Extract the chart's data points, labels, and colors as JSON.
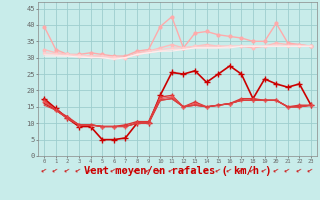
{
  "bg_color": "#c8ecea",
  "grid_color": "#9ecece",
  "xlabel": "Vent moyen/en rafales ( km/h )",
  "xlabel_color": "#cc0000",
  "xlabel_fontsize": 7.5,
  "ylim": [
    0,
    47
  ],
  "xlim": [
    -0.5,
    23.5
  ],
  "series": [
    {
      "color": "#ffaaaa",
      "lw": 1.0,
      "marker": "o",
      "ms": 2.0,
      "y": [
        39.5,
        32.5,
        31.0,
        31.0,
        31.5,
        31.0,
        30.5,
        30.5,
        32.0,
        32.5,
        39.5,
        42.5,
        33.0,
        37.5,
        38.0,
        37.0,
        36.5,
        36.0,
        35.0,
        35.0,
        40.5,
        34.5,
        34.0,
        33.5
      ]
    },
    {
      "color": "#ffbbbb",
      "lw": 1.0,
      "marker": "o",
      "ms": 1.8,
      "y": [
        32.5,
        31.5,
        31.0,
        30.5,
        30.5,
        30.5,
        30.0,
        30.0,
        31.5,
        32.0,
        33.0,
        34.0,
        33.0,
        33.5,
        34.0,
        33.5,
        33.5,
        33.5,
        33.0,
        33.5,
        34.5,
        34.0,
        34.0,
        33.5
      ]
    },
    {
      "color": "#ffcccc",
      "lw": 0.9,
      "marker": "o",
      "ms": 1.5,
      "y": [
        31.5,
        31.2,
        31.0,
        30.8,
        30.5,
        30.5,
        30.2,
        30.0,
        31.0,
        32.0,
        32.5,
        33.0,
        33.0,
        33.5,
        33.5,
        33.5,
        33.5,
        33.5,
        33.5,
        33.5,
        34.0,
        33.5,
        33.5,
        33.5
      ]
    },
    {
      "color": "#ffdddd",
      "lw": 0.9,
      "marker": null,
      "ms": 0,
      "y": [
        31.0,
        30.8,
        30.5,
        30.5,
        30.2,
        30.0,
        29.8,
        30.0,
        31.0,
        31.5,
        32.0,
        32.5,
        32.5,
        33.0,
        33.0,
        33.0,
        33.5,
        33.5,
        33.5,
        33.5,
        33.5,
        33.5,
        33.5,
        33.5
      ]
    },
    {
      "color": "#ffeeee",
      "lw": 0.8,
      "marker": null,
      "ms": 0,
      "y": [
        30.5,
        30.5,
        30.5,
        30.2,
        30.0,
        30.0,
        29.5,
        30.0,
        31.0,
        31.5,
        32.0,
        32.0,
        32.5,
        33.0,
        33.0,
        33.0,
        33.0,
        33.5,
        33.5,
        33.5,
        33.5,
        33.5,
        33.5,
        33.5
      ]
    },
    {
      "color": "#cc0000",
      "lw": 1.2,
      "marker": "+",
      "ms": 4.0,
      "y": [
        17.5,
        14.5,
        11.5,
        9.0,
        9.0,
        5.0,
        5.0,
        5.5,
        10.0,
        10.0,
        18.5,
        25.5,
        25.0,
        26.0,
        22.5,
        25.0,
        27.5,
        25.0,
        17.5,
        23.5,
        22.0,
        21.0,
        22.0,
        15.5
      ]
    },
    {
      "color": "#dd3333",
      "lw": 1.0,
      "marker": "+",
      "ms": 3.0,
      "y": [
        17.0,
        14.0,
        12.0,
        9.5,
        9.5,
        9.0,
        9.0,
        9.5,
        10.5,
        10.5,
        18.0,
        18.5,
        15.0,
        16.5,
        15.0,
        15.5,
        16.0,
        17.5,
        17.5,
        17.0,
        17.0,
        15.0,
        15.5,
        15.5
      ]
    },
    {
      "color": "#ee5555",
      "lw": 0.9,
      "marker": "+",
      "ms": 2.5,
      "y": [
        16.5,
        14.0,
        11.5,
        9.5,
        9.5,
        9.0,
        9.0,
        9.0,
        10.0,
        10.0,
        17.5,
        18.0,
        15.0,
        16.0,
        15.0,
        15.5,
        16.0,
        17.0,
        17.0,
        17.0,
        17.0,
        15.0,
        15.0,
        15.5
      ]
    },
    {
      "color": "#cc2222",
      "lw": 0.9,
      "marker": null,
      "ms": 0,
      "y": [
        16.0,
        14.0,
        11.5,
        9.5,
        9.5,
        9.0,
        9.0,
        9.0,
        10.0,
        10.0,
        17.0,
        17.5,
        15.0,
        15.5,
        15.0,
        15.5,
        16.0,
        17.0,
        17.0,
        17.0,
        17.0,
        15.0,
        15.0,
        15.5
      ]
    },
    {
      "color": "#dd4444",
      "lw": 0.8,
      "marker": null,
      "ms": 0,
      "y": [
        15.5,
        14.0,
        11.5,
        9.5,
        9.5,
        9.0,
        9.0,
        9.0,
        10.0,
        10.0,
        17.0,
        17.5,
        15.0,
        15.5,
        15.0,
        15.5,
        16.0,
        17.0,
        17.0,
        17.0,
        17.0,
        15.0,
        15.0,
        15.5
      ]
    }
  ],
  "arrow_color": "#cc0000",
  "arrow_char": "←"
}
